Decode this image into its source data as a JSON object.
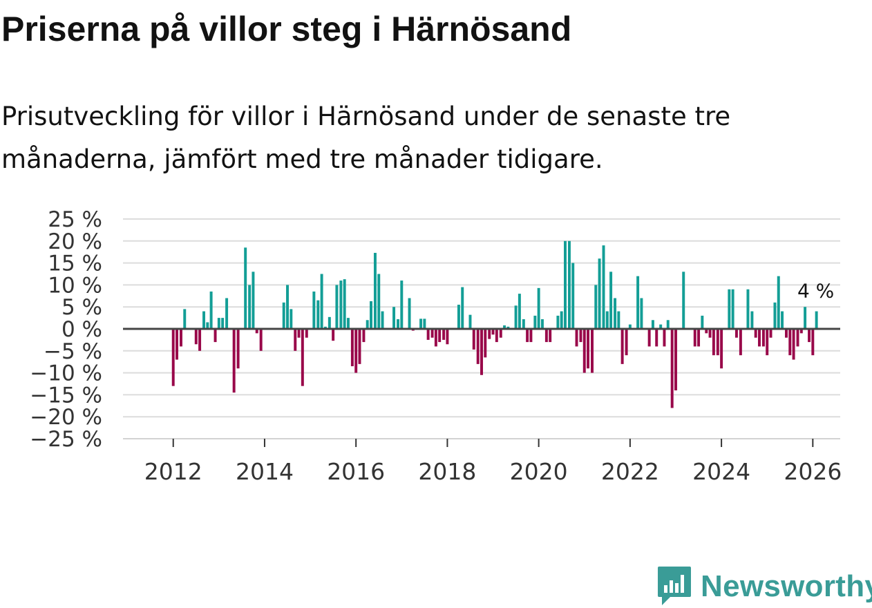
{
  "header": {
    "title": "Priserna på villor steg i Härnösand",
    "subtitle": "Prisutveckling för villor i Härnösand under de senaste tre månaderna, jämfört med tre månader tidigare."
  },
  "brand": {
    "name": "Newsworthy"
  },
  "colors": {
    "positive": "#139e96",
    "negative": "#99084a",
    "grid": "#dcdcdc",
    "zero": "#444444",
    "text": "#121212",
    "logo": "#3a9c97"
  },
  "chart_data": {
    "type": "bar",
    "title": "Priserna på villor steg i Härnösand",
    "ylabel": "",
    "xlabel": "",
    "ylim": [
      -25,
      25
    ],
    "yticks": [
      25,
      20,
      15,
      10,
      5,
      0,
      -5,
      -10,
      -15,
      -20,
      -25
    ],
    "ytick_labels": [
      "25 %",
      "20 %",
      "15 %",
      "10 %",
      "5 %",
      "0 %",
      "−5 %",
      "−10 %",
      "−15 %",
      "−20 %",
      "−25 %"
    ],
    "xlim": [
      2010.9,
      2026.6
    ],
    "xticks": [
      "2012",
      "2014",
      "2016",
      "2018",
      "2020",
      "2022",
      "2024",
      "2026"
    ],
    "grid": true,
    "annotation": {
      "label": "4 %",
      "x": 2026.08,
      "value": 4
    },
    "series": [
      {
        "name": "Prisutveckling",
        "points": [
          {
            "x": 2012.0,
            "y": -13
          },
          {
            "x": 2012.08,
            "y": -7
          },
          {
            "x": 2012.17,
            "y": -4
          },
          {
            "x": 2012.25,
            "y": 4.5
          },
          {
            "x": 2012.5,
            "y": -3.5
          },
          {
            "x": 2012.58,
            "y": -5
          },
          {
            "x": 2012.67,
            "y": 4
          },
          {
            "x": 2012.75,
            "y": 1.5
          },
          {
            "x": 2012.83,
            "y": 8.5
          },
          {
            "x": 2012.92,
            "y": -3
          },
          {
            "x": 2013.0,
            "y": 2.5
          },
          {
            "x": 2013.08,
            "y": 2.5
          },
          {
            "x": 2013.17,
            "y": 7
          },
          {
            "x": 2013.33,
            "y": -14.5
          },
          {
            "x": 2013.42,
            "y": -9
          },
          {
            "x": 2013.58,
            "y": 18.5
          },
          {
            "x": 2013.67,
            "y": 10
          },
          {
            "x": 2013.75,
            "y": 13
          },
          {
            "x": 2013.83,
            "y": -1
          },
          {
            "x": 2013.92,
            "y": -5
          },
          {
            "x": 2014.42,
            "y": 6
          },
          {
            "x": 2014.5,
            "y": 10
          },
          {
            "x": 2014.58,
            "y": 4.5
          },
          {
            "x": 2014.67,
            "y": -5
          },
          {
            "x": 2014.75,
            "y": -2
          },
          {
            "x": 2014.83,
            "y": -13
          },
          {
            "x": 2014.92,
            "y": -2
          },
          {
            "x": 2015.08,
            "y": 8.5
          },
          {
            "x": 2015.17,
            "y": 6.5
          },
          {
            "x": 2015.25,
            "y": 12.5
          },
          {
            "x": 2015.33,
            "y": 0.5
          },
          {
            "x": 2015.42,
            "y": 2.7
          },
          {
            "x": 2015.5,
            "y": -2.7
          },
          {
            "x": 2015.58,
            "y": 10
          },
          {
            "x": 2015.67,
            "y": 11
          },
          {
            "x": 2015.75,
            "y": 11.3
          },
          {
            "x": 2015.83,
            "y": 2.5
          },
          {
            "x": 2015.92,
            "y": -8.5
          },
          {
            "x": 2016.0,
            "y": -10
          },
          {
            "x": 2016.08,
            "y": -8
          },
          {
            "x": 2016.17,
            "y": -3
          },
          {
            "x": 2016.25,
            "y": 2
          },
          {
            "x": 2016.33,
            "y": 6.3
          },
          {
            "x": 2016.42,
            "y": 17.3
          },
          {
            "x": 2016.5,
            "y": 12.5
          },
          {
            "x": 2016.58,
            "y": 4
          },
          {
            "x": 2016.83,
            "y": 5
          },
          {
            "x": 2016.92,
            "y": 2.2
          },
          {
            "x": 2017.0,
            "y": 11
          },
          {
            "x": 2017.17,
            "y": 7
          },
          {
            "x": 2017.25,
            "y": -0.4
          },
          {
            "x": 2017.42,
            "y": 2.3
          },
          {
            "x": 2017.5,
            "y": 2.3
          },
          {
            "x": 2017.58,
            "y": -2.5
          },
          {
            "x": 2017.67,
            "y": -2
          },
          {
            "x": 2017.75,
            "y": -4
          },
          {
            "x": 2017.83,
            "y": -3
          },
          {
            "x": 2017.92,
            "y": -2.5
          },
          {
            "x": 2018.0,
            "y": -3.5
          },
          {
            "x": 2018.25,
            "y": 5.5
          },
          {
            "x": 2018.33,
            "y": 9.5
          },
          {
            "x": 2018.5,
            "y": 3.2
          },
          {
            "x": 2018.58,
            "y": -4.7
          },
          {
            "x": 2018.67,
            "y": -8
          },
          {
            "x": 2018.75,
            "y": -10.5
          },
          {
            "x": 2018.83,
            "y": -6.5
          },
          {
            "x": 2018.92,
            "y": -2.3
          },
          {
            "x": 2019.0,
            "y": -1.3
          },
          {
            "x": 2019.08,
            "y": -3
          },
          {
            "x": 2019.17,
            "y": -2
          },
          {
            "x": 2019.25,
            "y": 0.8
          },
          {
            "x": 2019.33,
            "y": 0.5
          },
          {
            "x": 2019.5,
            "y": 5.3
          },
          {
            "x": 2019.58,
            "y": 8
          },
          {
            "x": 2019.67,
            "y": 2.2
          },
          {
            "x": 2019.75,
            "y": -3
          },
          {
            "x": 2019.83,
            "y": -3
          },
          {
            "x": 2019.92,
            "y": 3
          },
          {
            "x": 2020.0,
            "y": 9.3
          },
          {
            "x": 2020.08,
            "y": 2.2
          },
          {
            "x": 2020.17,
            "y": -3
          },
          {
            "x": 2020.25,
            "y": -3
          },
          {
            "x": 2020.42,
            "y": 3
          },
          {
            "x": 2020.5,
            "y": 4
          },
          {
            "x": 2020.58,
            "y": 20
          },
          {
            "x": 2020.67,
            "y": 20
          },
          {
            "x": 2020.75,
            "y": 15
          },
          {
            "x": 2020.83,
            "y": -4
          },
          {
            "x": 2020.92,
            "y": -3
          },
          {
            "x": 2021.0,
            "y": -10
          },
          {
            "x": 2021.08,
            "y": -9
          },
          {
            "x": 2021.17,
            "y": -10
          },
          {
            "x": 2021.25,
            "y": 10
          },
          {
            "x": 2021.33,
            "y": 16
          },
          {
            "x": 2021.42,
            "y": 19
          },
          {
            "x": 2021.5,
            "y": 4
          },
          {
            "x": 2021.58,
            "y": 13
          },
          {
            "x": 2021.67,
            "y": 7
          },
          {
            "x": 2021.75,
            "y": 4
          },
          {
            "x": 2021.83,
            "y": -8
          },
          {
            "x": 2021.92,
            "y": -6
          },
          {
            "x": 2022.0,
            "y": 1
          },
          {
            "x": 2022.17,
            "y": 12
          },
          {
            "x": 2022.25,
            "y": 7
          },
          {
            "x": 2022.42,
            "y": -4
          },
          {
            "x": 2022.5,
            "y": 2
          },
          {
            "x": 2022.58,
            "y": -4
          },
          {
            "x": 2022.67,
            "y": 1
          },
          {
            "x": 2022.75,
            "y": -4
          },
          {
            "x": 2022.83,
            "y": 2
          },
          {
            "x": 2022.92,
            "y": -18
          },
          {
            "x": 2023.0,
            "y": -14
          },
          {
            "x": 2023.17,
            "y": 13
          },
          {
            "x": 2023.42,
            "y": -4
          },
          {
            "x": 2023.5,
            "y": -4
          },
          {
            "x": 2023.58,
            "y": 3
          },
          {
            "x": 2023.67,
            "y": -1
          },
          {
            "x": 2023.75,
            "y": -2
          },
          {
            "x": 2023.83,
            "y": -6
          },
          {
            "x": 2023.92,
            "y": -6
          },
          {
            "x": 2024.0,
            "y": -9
          },
          {
            "x": 2024.17,
            "y": 9
          },
          {
            "x": 2024.25,
            "y": 9
          },
          {
            "x": 2024.33,
            "y": -2
          },
          {
            "x": 2024.42,
            "y": -6
          },
          {
            "x": 2024.58,
            "y": 9
          },
          {
            "x": 2024.67,
            "y": 4
          },
          {
            "x": 2024.75,
            "y": -2
          },
          {
            "x": 2024.83,
            "y": -4
          },
          {
            "x": 2024.92,
            "y": -4
          },
          {
            "x": 2025.0,
            "y": -6
          },
          {
            "x": 2025.08,
            "y": -2
          },
          {
            "x": 2025.17,
            "y": 6
          },
          {
            "x": 2025.25,
            "y": 12
          },
          {
            "x": 2025.33,
            "y": 4
          },
          {
            "x": 2025.42,
            "y": -2
          },
          {
            "x": 2025.5,
            "y": -6
          },
          {
            "x": 2025.58,
            "y": -7
          },
          {
            "x": 2025.67,
            "y": -4
          },
          {
            "x": 2025.75,
            "y": -1
          },
          {
            "x": 2025.83,
            "y": 5
          },
          {
            "x": 2025.92,
            "y": -3
          },
          {
            "x": 2026.0,
            "y": -6
          },
          {
            "x": 2026.08,
            "y": 4
          }
        ]
      }
    ]
  }
}
